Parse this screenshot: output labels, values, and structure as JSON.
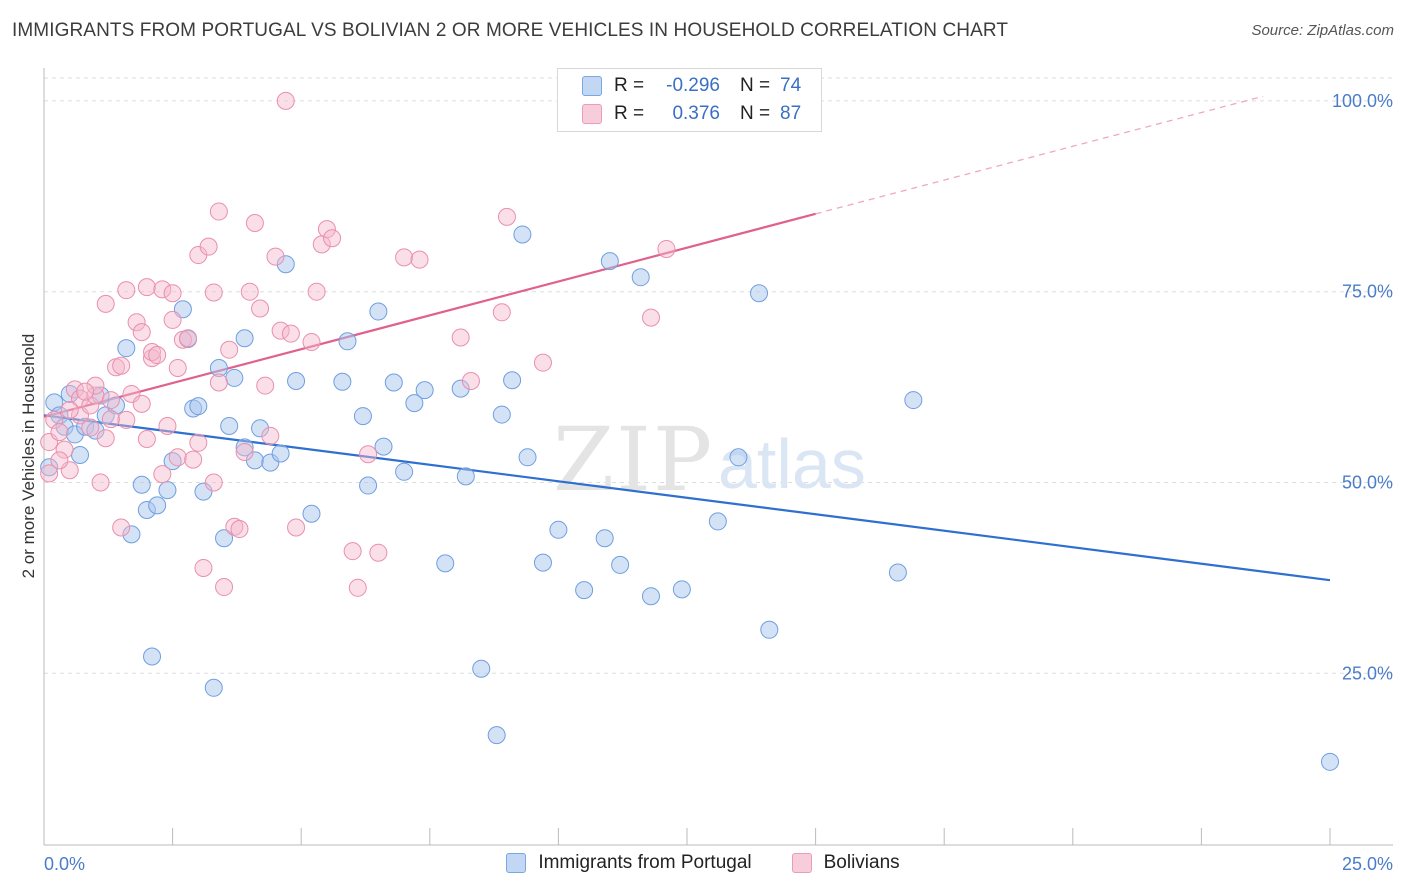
{
  "title": "IMMIGRANTS FROM PORTUGAL VS BOLIVIAN 2 OR MORE VEHICLES IN HOUSEHOLD CORRELATION CHART",
  "source": "Source: ZipAtlas.com",
  "watermark": {
    "zip": "ZIP",
    "atlas": "atlas"
  },
  "legend": {
    "rows": [
      {
        "r_label": "R =",
        "r_value": "-0.296",
        "n_label": "N =",
        "n_value": "74"
      },
      {
        "r_label": "R =",
        "r_value": "0.376",
        "n_label": "N =",
        "n_value": "87"
      }
    ]
  },
  "bottom_legend": [
    "Immigrants from Portugal",
    "Bolivians"
  ],
  "colors": {
    "blue_fill": "#a9c6ee",
    "blue_stroke": "#6f9fe0",
    "blue_line": "#2e6fd0",
    "pink_fill": "#f5b8cc",
    "pink_stroke": "#ea8fad",
    "pink_line": "#e0628c",
    "grid": "#dddddd",
    "tick_text": "#4a7cc9"
  },
  "chart_data": {
    "type": "scatter",
    "title": "IMMIGRANTS FROM PORTUGAL VS BOLIVIAN 2 OR MORE VEHICLES IN HOUSEHOLD CORRELATION CHART",
    "xlabel": "",
    "ylabel": "2 or more Vehicles in Household",
    "xlim": [
      0,
      25
    ],
    "ylim": [
      2.5,
      103
    ],
    "x_tick_labels": [
      "0.0%",
      "25.0%"
    ],
    "y_ticks": [
      25,
      50,
      75,
      100
    ],
    "y_tick_labels": [
      "25.0%",
      "50.0%",
      "75.0%",
      "100.0%"
    ],
    "grid": true,
    "legend_position": "top-center",
    "series": [
      {
        "name": "Immigrants from Portugal",
        "color": "#6f9fe0",
        "regression": {
          "x": [
            0,
            25
          ],
          "y": [
            58.8,
            37.2
          ]
        },
        "points": [
          [
            0.2,
            60.5
          ],
          [
            0.3,
            58.8
          ],
          [
            0.4,
            57.3
          ],
          [
            0.5,
            61.6
          ],
          [
            0.6,
            56.3
          ],
          [
            0.7,
            53.6
          ],
          [
            0.8,
            57.3
          ],
          [
            1.0,
            56.8
          ],
          [
            1.1,
            61.4
          ],
          [
            1.2,
            58.8
          ],
          [
            1.4,
            60.1
          ],
          [
            1.6,
            67.6
          ],
          [
            1.7,
            43.2
          ],
          [
            1.9,
            49.7
          ],
          [
            2.0,
            46.4
          ],
          [
            2.1,
            27.2
          ],
          [
            2.2,
            47.0
          ],
          [
            2.4,
            49.0
          ],
          [
            2.5,
            52.8
          ],
          [
            2.7,
            72.7
          ],
          [
            2.8,
            68.8
          ],
          [
            2.9,
            59.7
          ],
          [
            3.0,
            60.0
          ],
          [
            3.1,
            48.8
          ],
          [
            3.3,
            23.1
          ],
          [
            3.4,
            65.0
          ],
          [
            3.5,
            42.7
          ],
          [
            3.6,
            57.4
          ],
          [
            3.7,
            63.7
          ],
          [
            3.9,
            54.6
          ],
          [
            3.9,
            68.9
          ],
          [
            4.1,
            52.9
          ],
          [
            4.2,
            57.1
          ],
          [
            4.4,
            52.6
          ],
          [
            4.6,
            53.8
          ],
          [
            4.7,
            78.6
          ],
          [
            4.9,
            63.3
          ],
          [
            5.2,
            45.9
          ],
          [
            5.9,
            68.5
          ],
          [
            5.8,
            63.2
          ],
          [
            6.2,
            58.7
          ],
          [
            6.3,
            49.6
          ],
          [
            6.5,
            72.4
          ],
          [
            6.6,
            54.7
          ],
          [
            6.8,
            63.1
          ],
          [
            7.0,
            51.4
          ],
          [
            7.2,
            60.4
          ],
          [
            7.4,
            62.1
          ],
          [
            7.8,
            39.4
          ],
          [
            8.1,
            62.3
          ],
          [
            8.2,
            50.8
          ],
          [
            8.5,
            25.6
          ],
          [
            8.8,
            16.9
          ],
          [
            8.9,
            58.9
          ],
          [
            9.1,
            63.4
          ],
          [
            9.3,
            82.5
          ],
          [
            9.4,
            53.3
          ],
          [
            9.7,
            39.5
          ],
          [
            10.0,
            43.8
          ],
          [
            10.5,
            35.9
          ],
          [
            10.9,
            42.7
          ],
          [
            11.0,
            79.0
          ],
          [
            11.2,
            39.2
          ],
          [
            11.6,
            76.9
          ],
          [
            11.8,
            35.1
          ],
          [
            12.4,
            36.0
          ],
          [
            13.1,
            44.9
          ],
          [
            13.5,
            53.3
          ],
          [
            13.9,
            74.8
          ],
          [
            14.1,
            30.7
          ],
          [
            16.6,
            38.2
          ],
          [
            16.9,
            60.8
          ],
          [
            25.0,
            13.4
          ],
          [
            0.1,
            52.0
          ]
        ]
      },
      {
        "name": "Bolivians",
        "color": "#ea8fad",
        "regression": {
          "x": [
            0,
            15
          ],
          "y": [
            58.6,
            85.2
          ]
        },
        "regression_dashed": {
          "x": [
            15,
            23.7
          ],
          "y": [
            85.2,
            100.6
          ]
        },
        "points": [
          [
            0.1,
            55.3
          ],
          [
            0.2,
            58.2
          ],
          [
            0.3,
            56.6
          ],
          [
            0.4,
            54.3
          ],
          [
            0.5,
            51.6
          ],
          [
            0.6,
            62.2
          ],
          [
            0.7,
            61.0
          ],
          [
            0.7,
            58.8
          ],
          [
            0.9,
            60.1
          ],
          [
            1.0,
            61.4
          ],
          [
            1.0,
            62.7
          ],
          [
            1.1,
            50.0
          ],
          [
            1.2,
            55.8
          ],
          [
            1.2,
            73.4
          ],
          [
            1.3,
            60.8
          ],
          [
            1.4,
            65.1
          ],
          [
            1.5,
            65.3
          ],
          [
            1.5,
            44.1
          ],
          [
            1.6,
            58.2
          ],
          [
            1.6,
            75.2
          ],
          [
            1.7,
            61.6
          ],
          [
            1.8,
            71.0
          ],
          [
            1.9,
            60.3
          ],
          [
            1.9,
            69.7
          ],
          [
            2.0,
            55.7
          ],
          [
            2.0,
            75.6
          ],
          [
            2.1,
            66.3
          ],
          [
            2.1,
            67.1
          ],
          [
            2.2,
            66.7
          ],
          [
            2.3,
            75.3
          ],
          [
            2.3,
            51.1
          ],
          [
            2.4,
            57.4
          ],
          [
            2.5,
            71.3
          ],
          [
            2.5,
            74.8
          ],
          [
            2.6,
            53.3
          ],
          [
            2.7,
            68.7
          ],
          [
            2.8,
            68.9
          ],
          [
            2.9,
            53.0
          ],
          [
            3.0,
            79.8
          ],
          [
            3.1,
            38.8
          ],
          [
            3.2,
            80.9
          ],
          [
            3.3,
            50.0
          ],
          [
            3.3,
            74.9
          ],
          [
            3.4,
            63.1
          ],
          [
            3.4,
            85.5
          ],
          [
            3.5,
            36.3
          ],
          [
            3.6,
            67.4
          ],
          [
            3.7,
            44.2
          ],
          [
            3.8,
            43.9
          ],
          [
            3.9,
            54.0
          ],
          [
            4.0,
            75.0
          ],
          [
            4.1,
            84.0
          ],
          [
            4.2,
            72.8
          ],
          [
            4.3,
            62.7
          ],
          [
            4.4,
            56.1
          ],
          [
            4.5,
            79.6
          ],
          [
            4.6,
            69.9
          ],
          [
            4.8,
            69.5
          ],
          [
            4.9,
            44.1
          ],
          [
            5.2,
            68.4
          ],
          [
            5.3,
            75.0
          ],
          [
            5.4,
            81.2
          ],
          [
            5.5,
            83.2
          ],
          [
            5.6,
            82.0
          ],
          [
            6.0,
            41.0
          ],
          [
            6.1,
            36.2
          ],
          [
            6.3,
            53.7
          ],
          [
            6.5,
            40.8
          ],
          [
            7.0,
            79.5
          ],
          [
            7.3,
            79.2
          ],
          [
            8.1,
            69.0
          ],
          [
            8.3,
            63.3
          ],
          [
            8.9,
            72.3
          ],
          [
            9.0,
            84.8
          ],
          [
            9.7,
            65.7
          ],
          [
            11.3,
            100.0
          ],
          [
            11.8,
            71.6
          ],
          [
            12.1,
            80.6
          ],
          [
            4.7,
            100.0
          ],
          [
            0.9,
            57.2
          ],
          [
            0.3,
            52.9
          ],
          [
            0.5,
            59.5
          ],
          [
            0.8,
            61.9
          ],
          [
            1.3,
            58.3
          ],
          [
            2.6,
            65.0
          ],
          [
            3.0,
            55.2
          ],
          [
            0.1,
            51.2
          ]
        ]
      }
    ]
  }
}
